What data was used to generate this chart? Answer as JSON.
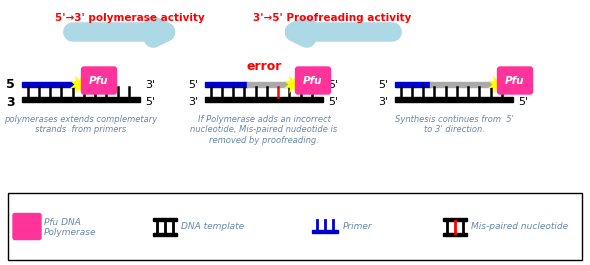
{
  "bg_color": "#ffffff",
  "arrow1_color": "#add8e6",
  "arrow2_color": "#add8e6",
  "arrow1_label": "5'→3' polymerase activity",
  "arrow2_label": "3'→5' Proofreading activity",
  "arrow_label_color": "#ff0000",
  "pfu_color": "#ff3399",
  "pfu_text": "Pfu",
  "pfu_text_color": "#ffffff",
  "dna_black": "#000000",
  "dna_blue": "#0000cc",
  "dna_gray": "#aaaaaa",
  "dna_red": "#ff0000",
  "spark_color": "#ffff00",
  "error_color": "#ff0000",
  "caption1": "polymerases extends complemetary\nstrands  from primers",
  "caption2": "If Polymerase adds an incorrect\nnucleotide, Mis-paired nudeotide is\nremoved by proofreading.",
  "caption3": "Synthesis continues from  5'\nto 3' direction.",
  "caption_color": "#6688aa",
  "legend_pfu_label1": "Pfu DNA",
  "legend_pfu_label2": "Polymerase",
  "legend_dna_label": "DNA template",
  "legend_primer_label": "Primer",
  "legend_mis_label": "Mis-paired nucleotide",
  "legend_label_color": "#6688aa"
}
